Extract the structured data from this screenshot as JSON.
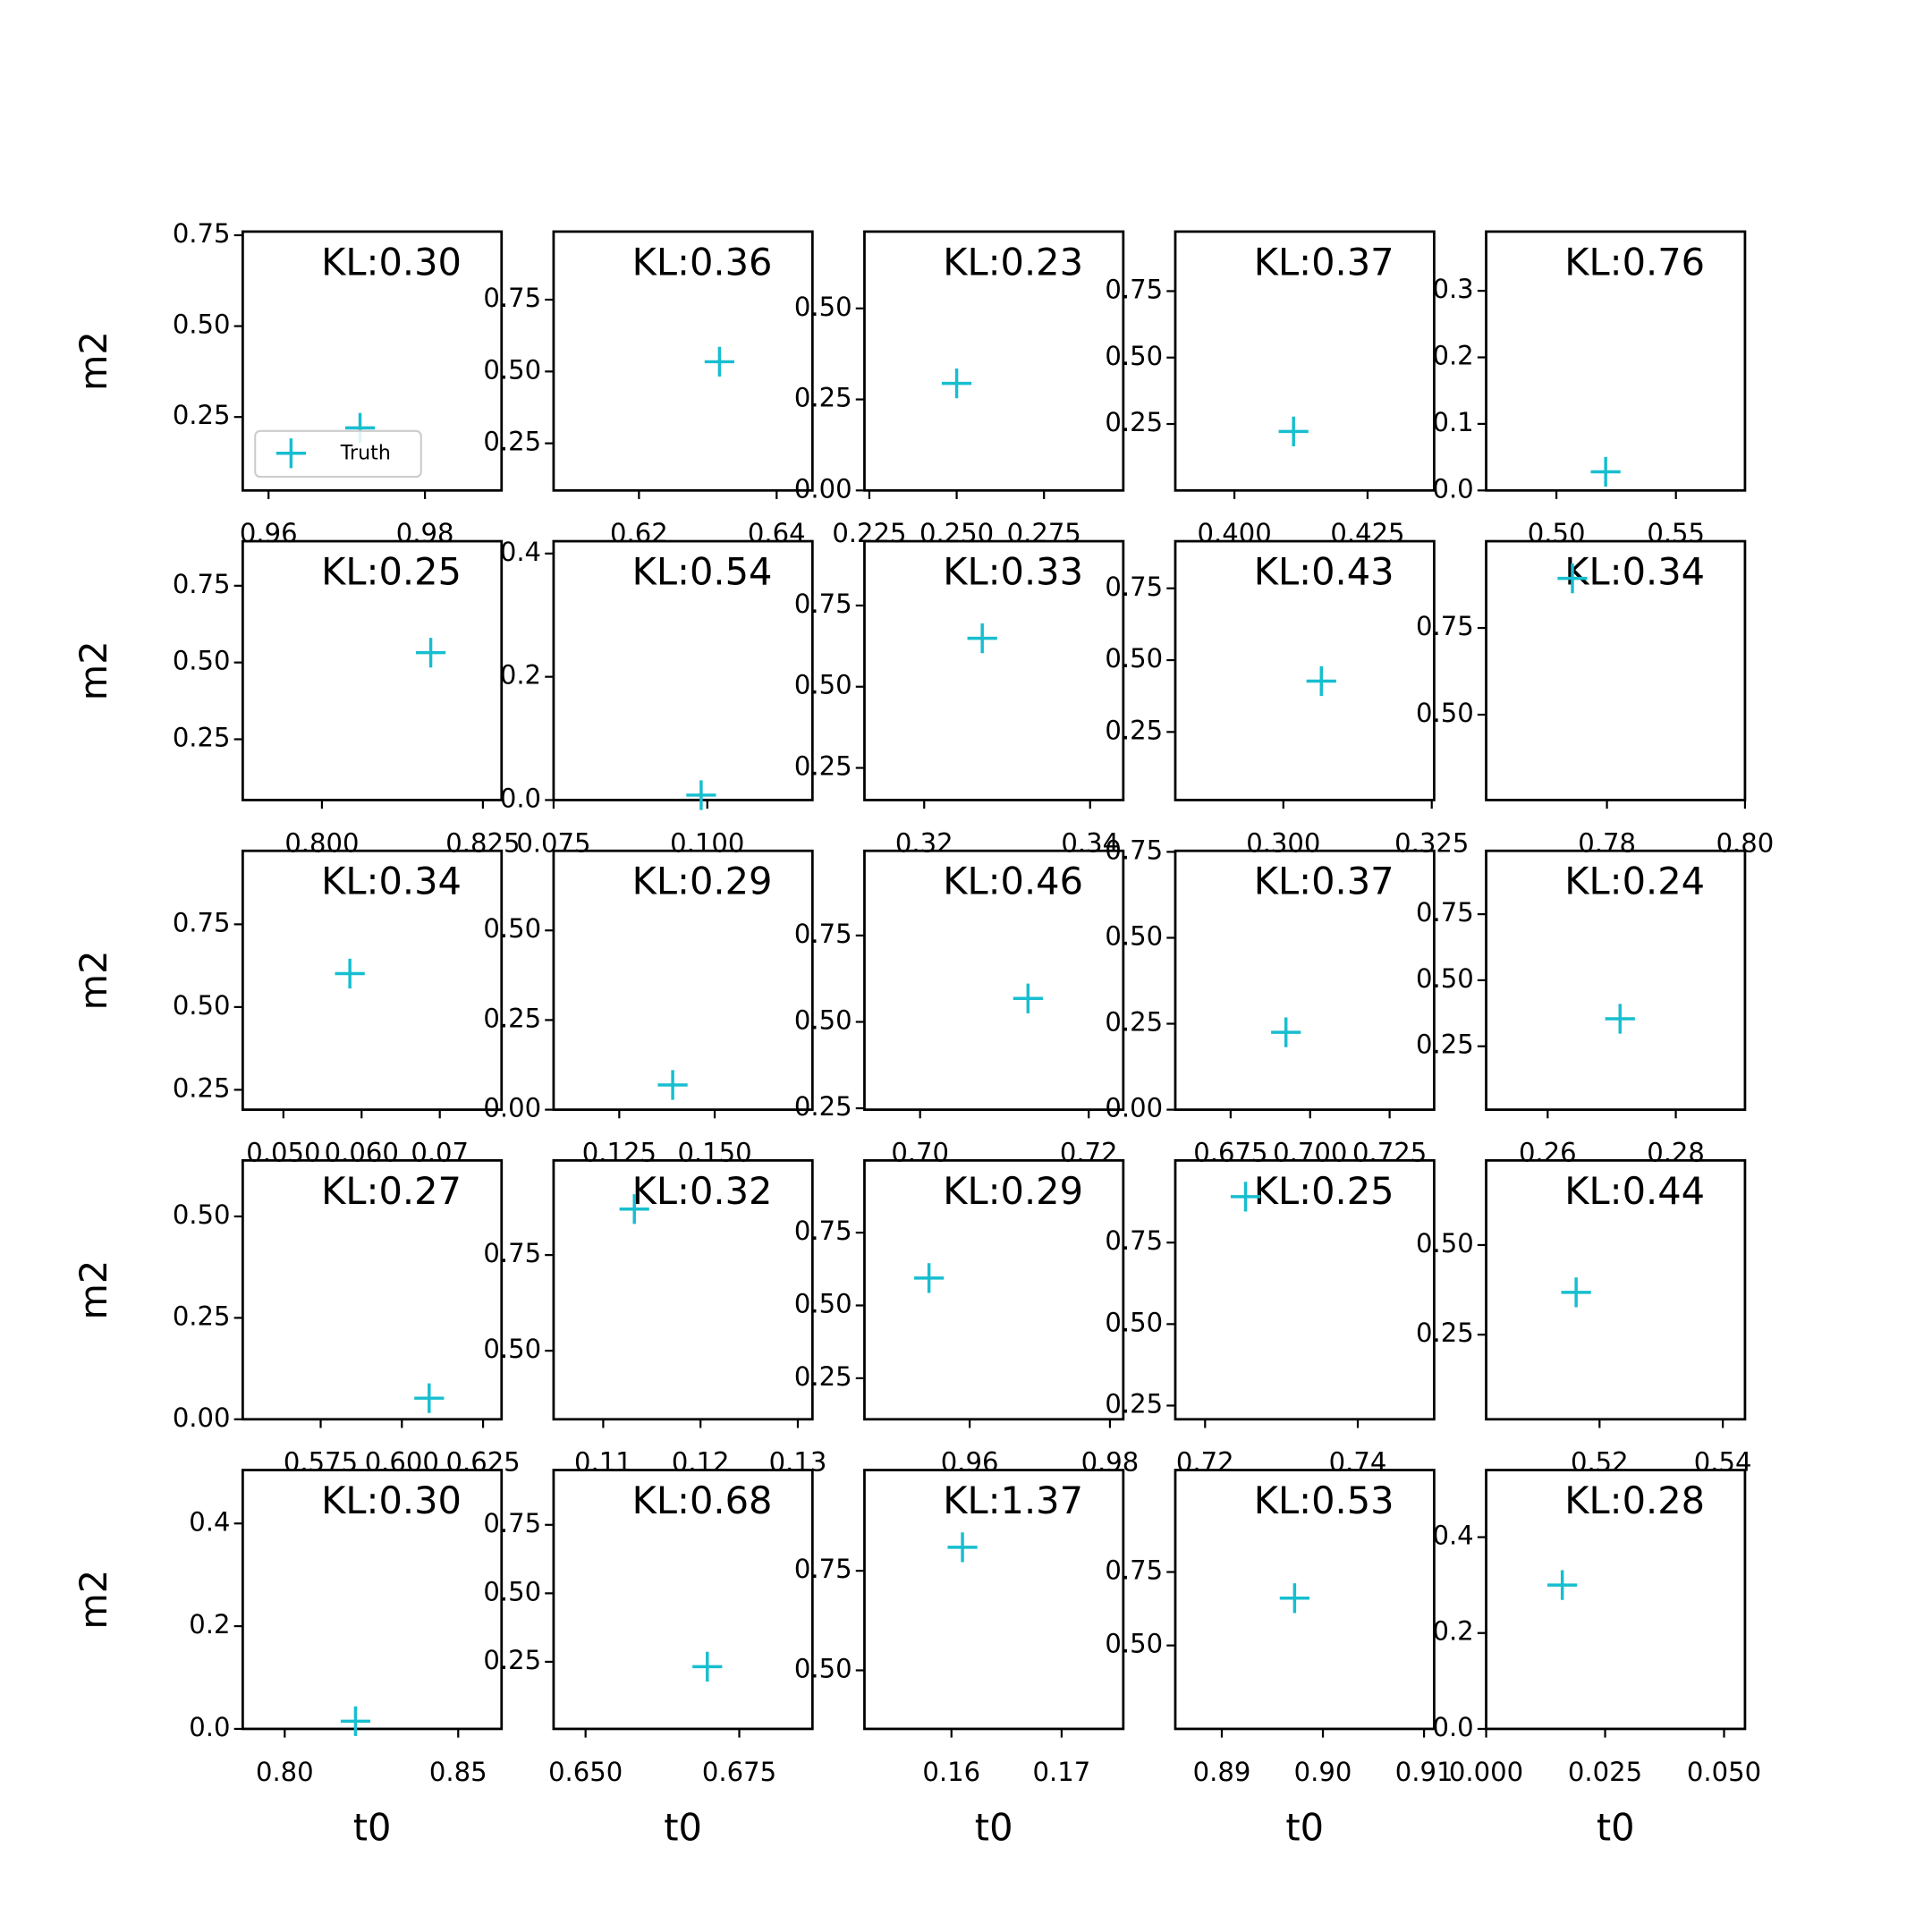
{
  "chart_data": [
    {
      "type": "contour",
      "title": "KL:0.30",
      "ylabel": "m2",
      "legend": "lower left",
      "xlim": [
        0.9567,
        0.9898
      ],
      "xticks": [
        0.96,
        0.98
      ],
      "ylim": [
        0.048,
        0.76
      ],
      "yticks": [
        0.25,
        {
          "value": 0.5,
          "label": "0.50"
        },
        0.75
      ],
      "series": [
        {
          "name": "Truth",
          "color": "#17becf",
          "x": [
            0.9717
          ],
          "values": [
            0.22
          ]
        }
      ]
    },
    {
      "type": "contour",
      "title": "KL:0.36",
      "xlim": [
        0.6076,
        0.6452
      ],
      "xticks": [
        0.62,
        0.64
      ],
      "ylim": [
        0.086,
        0.987
      ],
      "yticks": [
        0.25,
        {
          "value": 0.5,
          "label": "0.50"
        },
        0.75
      ],
      "series": [
        {
          "color": "#17becf",
          "x": [
            0.6317
          ],
          "values": [
            0.534
          ]
        }
      ]
    },
    {
      "type": "contour",
      "title": "KL:0.23",
      "xlim": [
        0.2236,
        0.2977
      ],
      "xticks": [
        0.225,
        {
          "value": 0.25,
          "label": "0.250"
        },
        0.275
      ],
      "ylim": [
        0,
        0.711
      ],
      "yticks": [
        {
          "value": 0,
          "label": "0.00"
        },
        0.25,
        {
          "value": 0.5,
          "label": "0.50"
        }
      ],
      "series": [
        {
          "color": "#17becf",
          "x": [
            0.25
          ],
          "values": [
            0.294
          ]
        }
      ]
    },
    {
      "type": "contour",
      "title": "KL:0.37",
      "xlim": [
        0.3889,
        0.4375
      ],
      "xticks": [
        {
          "value": 0.4,
          "label": "0.400"
        },
        0.425
      ],
      "ylim": [
        0,
        0.974
      ],
      "yticks": [
        0.25,
        {
          "value": 0.5,
          "label": "0.50"
        },
        0.75
      ],
      "series": [
        {
          "color": "#17becf",
          "x": [
            0.4111
          ],
          "values": [
            0.222
          ]
        }
      ]
    },
    {
      "type": "contour",
      "title": "KL:0.76",
      "xlim": [
        0.4706,
        0.5789
      ],
      "xticks": [
        {
          "value": 0.5,
          "label": "0.50"
        },
        0.55
      ],
      "ylim": [
        0,
        0.389
      ],
      "yticks": [
        {
          "value": 0,
          "label": "0.0"
        },
        0.1,
        0.2,
        0.3
      ],
      "series": [
        {
          "color": "#17becf",
          "x": [
            0.5206
          ],
          "values": [
            0.028
          ]
        }
      ]
    },
    {
      "type": "contour",
      "title": "KL:0.25",
      "ylabel": "m2",
      "xlim": [
        0.7877,
        0.8279
      ],
      "xticks": [
        {
          "value": 0.8,
          "label": "0.800"
        },
        0.825
      ],
      "ylim": [
        0.052,
        0.895
      ],
      "yticks": [
        0.25,
        {
          "value": 0.5,
          "label": "0.50"
        },
        0.75
      ],
      "series": [
        {
          "color": "#17becf",
          "x": [
            0.8169
          ],
          "values": [
            0.532
          ]
        }
      ]
    },
    {
      "type": "contour",
      "title": "KL:0.54",
      "xlim": [
        0.075,
        0.1171
      ],
      "xticks": [
        0.075,
        {
          "value": 0.1,
          "label": "0.100"
        }
      ],
      "ylim": [
        0,
        0.42
      ],
      "yticks": [
        {
          "value": 0,
          "label": "0.0"
        },
        0.2,
        0.4
      ],
      "series": [
        {
          "color": "#17becf",
          "x": [
            0.099
          ],
          "values": [
            0.008
          ]
        }
      ]
    },
    {
      "type": "contour",
      "title": "KL:0.33",
      "xlim": [
        0.3128,
        0.344
      ],
      "xticks": [
        0.32,
        0.34
      ],
      "ylim": [
        0.151,
        0.948
      ],
      "yticks": [
        0.25,
        {
          "value": 0.5,
          "label": "0.50"
        },
        0.75
      ],
      "series": [
        {
          "color": "#17becf",
          "x": [
            0.327
          ],
          "values": [
            0.649
          ]
        }
      ]
    },
    {
      "type": "contour",
      "title": "KL:0.43",
      "xlim": [
        0.2818,
        0.3254
      ],
      "xticks": [
        {
          "value": 0.3,
          "label": "0.300"
        },
        0.325
      ],
      "ylim": [
        0.013,
        0.914
      ],
      "yticks": [
        0.25,
        {
          "value": 0.5,
          "label": "0.50"
        },
        0.75
      ],
      "series": [
        {
          "color": "#17becf",
          "x": [
            0.3064
          ],
          "values": [
            0.427
          ]
        }
      ]
    },
    {
      "type": "contour",
      "title": "KL:0.34",
      "xlim": [
        0.7625,
        0.8
      ],
      "xticks": [
        0.78,
        {
          "value": 0.8,
          "label": "0.80"
        }
      ],
      "ylim": [
        0.254,
        1.0
      ],
      "yticks": [
        {
          "value": 0.5,
          "label": "0.50"
        },
        0.75
      ],
      "series": [
        {
          "color": "#17becf",
          "x": [
            0.775
          ],
          "values": [
            0.893
          ]
        }
      ]
    },
    {
      "type": "contour",
      "title": "KL:0.34",
      "ylabel": "m2",
      "xlim": [
        0.0448,
        0.0779
      ],
      "xticks": [
        {
          "value": 0.05,
          "label": "0.050"
        },
        {
          "value": 0.06,
          "label": "0.060"
        },
        0.07
      ],
      "ylim": [
        0.19,
        0.972
      ],
      "yticks": [
        0.25,
        {
          "value": 0.5,
          "label": "0.50"
        },
        0.75
      ],
      "series": [
        {
          "color": "#17becf",
          "x": [
            0.0585
          ],
          "values": [
            0.601
          ]
        }
      ]
    },
    {
      "type": "contour",
      "title": "KL:0.29",
      "xlim": [
        0.1078,
        0.1756
      ],
      "xticks": [
        0.125,
        {
          "value": 0.15,
          "label": "0.150"
        }
      ],
      "ylim": [
        0,
        0.722
      ],
      "yticks": [
        {
          "value": 0,
          "label": "0.00"
        },
        0.25,
        {
          "value": 0.5,
          "label": "0.50"
        }
      ],
      "series": [
        {
          "color": "#17becf",
          "x": [
            0.139
          ],
          "values": [
            0.069
          ]
        }
      ]
    },
    {
      "type": "contour",
      "title": "KL:0.46",
      "xlim": [
        0.6934,
        0.7241
      ],
      "xticks": [
        {
          "value": 0.7,
          "label": "0.70"
        },
        0.72
      ],
      "ylim": [
        0.246,
        0.995
      ],
      "yticks": [
        0.25,
        {
          "value": 0.5,
          "label": "0.50"
        },
        0.75
      ],
      "series": [
        {
          "color": "#17becf",
          "x": [
            0.7128
          ],
          "values": [
            0.568
          ]
        }
      ]
    },
    {
      "type": "contour",
      "title": "KL:0.37",
      "xlim": [
        0.6576,
        0.739
      ],
      "xticks": [
        0.675,
        {
          "value": 0.7,
          "label": "0.700"
        },
        0.725
      ],
      "ylim": [
        0,
        0.753
      ],
      "yticks": [
        {
          "value": 0,
          "label": "0.00"
        },
        0.25,
        {
          "value": 0.5,
          "label": "0.50"
        },
        0.75
      ],
      "series": [
        {
          "color": "#17becf",
          "x": [
            0.6924
          ],
          "values": [
            0.225
          ]
        }
      ]
    },
    {
      "type": "contour",
      "title": "KL:0.24",
      "xlim": [
        0.2504,
        0.2908
      ],
      "xticks": [
        0.26,
        0.28
      ],
      "ylim": [
        0.01,
        0.99
      ],
      "yticks": [
        0.25,
        {
          "value": 0.5,
          "label": "0.50"
        },
        0.75
      ],
      "series": [
        {
          "color": "#17becf",
          "x": [
            0.2713
          ],
          "values": [
            0.354
          ]
        }
      ]
    },
    {
      "type": "contour",
      "title": "KL:0.27",
      "ylabel": "m2",
      "xlim": [
        0.551,
        0.6307
      ],
      "xticks": [
        0.575,
        {
          "value": 0.6,
          "label": "0.600"
        },
        0.625
      ],
      "ylim": [
        0,
        0.638
      ],
      "yticks": [
        {
          "value": 0,
          "label": "0.00"
        },
        0.25,
        {
          "value": 0.5,
          "label": "0.50"
        }
      ],
      "series": [
        {
          "color": "#17becf",
          "x": [
            0.6084
          ],
          "values": [
            0.052
          ]
        }
      ]
    },
    {
      "type": "contour",
      "title": "KL:0.32",
      "xlim": [
        0.1049,
        0.1315
      ],
      "xticks": [
        0.11,
        0.12,
        0.13
      ],
      "ylim": [
        0.321,
        0.997
      ],
      "yticks": [
        {
          "value": 0.5,
          "label": "0.50"
        },
        0.75
      ],
      "series": [
        {
          "color": "#17becf",
          "x": [
            0.1132
          ],
          "values": [
            0.87
          ]
        }
      ]
    },
    {
      "type": "contour",
      "title": "KL:0.29",
      "xlim": [
        0.945,
        0.9819
      ],
      "xticks": [
        0.96,
        0.98
      ],
      "ylim": [
        0.109,
        0.998
      ],
      "yticks": [
        0.25,
        {
          "value": 0.5,
          "label": "0.50"
        },
        0.75
      ],
      "series": [
        {
          "color": "#17becf",
          "x": [
            0.9542
          ],
          "values": [
            0.594
          ]
        }
      ]
    },
    {
      "type": "contour",
      "title": "KL:0.25",
      "xlim": [
        0.7161,
        0.75
      ],
      "xticks": [
        0.72,
        0.74
      ],
      "ylim": [
        0.208,
        1.002
      ],
      "yticks": [
        0.25,
        {
          "value": 0.5,
          "label": "0.50"
        },
        0.75
      ],
      "series": [
        {
          "color": "#17becf",
          "x": [
            0.7253
          ],
          "values": [
            0.891
          ]
        }
      ]
    },
    {
      "type": "contour",
      "title": "KL:0.44",
      "xlim": [
        0.5016,
        0.5436
      ],
      "xticks": [
        0.52,
        0.54
      ],
      "ylim": [
        0.014,
        0.736
      ],
      "yticks": [
        0.25,
        {
          "value": 0.5,
          "label": "0.50"
        }
      ],
      "series": [
        {
          "color": "#17becf",
          "x": [
            0.5162
          ],
          "values": [
            0.368
          ]
        }
      ]
    },
    {
      "type": "contour",
      "title": "KL:0.30",
      "ylabel": "m2",
      "xlabel": "t0",
      "xlim": [
        0.7879,
        0.8625
      ],
      "xticks": [
        {
          "value": 0.8,
          "label": "0.80"
        },
        0.85
      ],
      "ylim": [
        0,
        0.504
      ],
      "yticks": [
        {
          "value": 0,
          "label": "0.0"
        },
        0.2,
        0.4
      ],
      "series": [
        {
          "color": "#17becf",
          "x": [
            0.8204
          ],
          "values": [
            0.015
          ]
        }
      ]
    },
    {
      "type": "contour",
      "title": "KL:0.68",
      "xlabel": "t0",
      "xlim": [
        0.6448,
        0.6869
      ],
      "xticks": [
        {
          "value": 0.65,
          "label": "0.650"
        },
        0.675
      ],
      "ylim": [
        0.005,
        0.95
      ],
      "yticks": [
        0.25,
        {
          "value": 0.5,
          "label": "0.50"
        },
        0.75
      ],
      "series": [
        {
          "color": "#17becf",
          "x": [
            0.6698
          ],
          "values": [
            0.232
          ]
        }
      ]
    },
    {
      "type": "contour",
      "title": "KL:1.37",
      "xlabel": "t0",
      "xlim": [
        0.1521,
        0.1756
      ],
      "xticks": [
        0.16,
        0.17
      ],
      "ylim": [
        0.353,
        1.003
      ],
      "yticks": [
        {
          "value": 0.5,
          "label": "0.50"
        },
        0.75
      ],
      "series": [
        {
          "color": "#17becf",
          "x": [
            0.161
          ],
          "values": [
            0.809
          ]
        }
      ]
    },
    {
      "type": "contour",
      "title": "KL:0.53",
      "xlabel": "t0",
      "xlim": [
        0.8854,
        0.911
      ],
      "xticks": [
        0.89,
        {
          "value": 0.9,
          "label": "0.90"
        },
        0.91
      ],
      "ylim": [
        0.216,
        1.097
      ],
      "yticks": [
        {
          "value": 0.5,
          "label": "0.50"
        },
        0.75
      ],
      "series": [
        {
          "color": "#17becf",
          "x": [
            0.8972
          ],
          "values": [
            0.661
          ]
        }
      ]
    },
    {
      "type": "contour",
      "title": "KL:0.28",
      "xlabel": "t0",
      "xlim": [
        0,
        0.0544
      ],
      "xticks": [
        {
          "value": 0,
          "label": "0.000"
        },
        0.025,
        {
          "value": 0.05,
          "label": "0.050"
        }
      ],
      "ylim": [
        0,
        0.54
      ],
      "yticks": [
        {
          "value": 0,
          "label": "0.0"
        },
        0.2,
        0.4
      ],
      "series": [
        {
          "color": "#17becf",
          "x": [
            0.016
          ],
          "values": [
            0.3
          ]
        }
      ]
    }
  ]
}
